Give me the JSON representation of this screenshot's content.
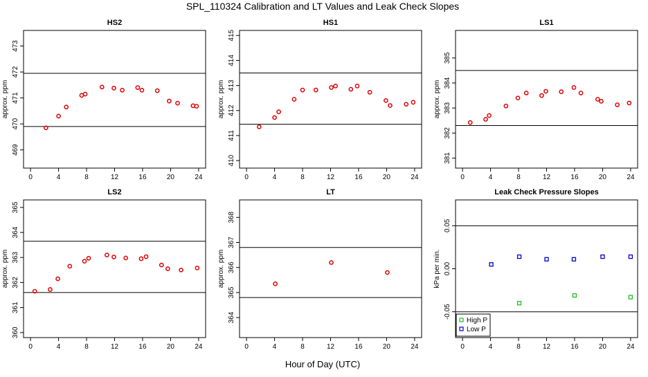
{
  "title": "SPL_110324  Calibration and LT Values and Leak Check Slopes",
  "xlabel": "Hour of Day (UTC)",
  "chart_data": [
    {
      "type": "scatter",
      "title": "HS2",
      "ylabel": "approx. ppm",
      "xlim": [
        -1,
        25
      ],
      "ylim": [
        468.3,
        473.6
      ],
      "xticks": [
        0,
        4,
        8,
        12,
        16,
        20,
        24
      ],
      "yticks": [
        469,
        470,
        471,
        472,
        473
      ],
      "hlines": [
        469.9,
        471.95
      ],
      "series": [
        {
          "color": "#dd0000",
          "marker": "circle",
          "x": [
            2.2,
            4,
            5.1,
            7.3,
            7.8,
            10.2,
            11.9,
            13.1,
            15.3,
            15.9,
            18.1,
            19.8,
            21,
            23.2,
            23.7
          ],
          "y": [
            469.85,
            470.3,
            470.65,
            471.1,
            471.15,
            471.42,
            471.38,
            471.3,
            471.4,
            471.3,
            471.28,
            470.88,
            470.8,
            470.7,
            470.68
          ]
        }
      ]
    },
    {
      "type": "scatter",
      "title": "HS1",
      "ylabel": "approx. ppm",
      "xlim": [
        -1,
        25
      ],
      "ylim": [
        409.7,
        415.2
      ],
      "xticks": [
        0,
        4,
        8,
        12,
        16,
        20,
        24
      ],
      "yticks": [
        410,
        411,
        412,
        413,
        414,
        415
      ],
      "hlines": [
        411.45,
        413.5
      ],
      "series": [
        {
          "color": "#dd0000",
          "marker": "circle",
          "x": [
            1.8,
            4,
            4.6,
            6.8,
            8,
            9.9,
            12.1,
            12.7,
            14.9,
            15.8,
            17.6,
            19.9,
            20.5,
            22.8,
            23.8
          ],
          "y": [
            411.35,
            411.72,
            411.95,
            412.45,
            412.82,
            412.82,
            412.92,
            412.98,
            412.85,
            412.98,
            412.73,
            412.4,
            412.2,
            412.25,
            412.33
          ]
        }
      ]
    },
    {
      "type": "scatter",
      "title": "LS1",
      "ylabel": "approx. ppm",
      "xlim": [
        -1,
        25
      ],
      "ylim": [
        380.6,
        386.1
      ],
      "xticks": [
        0,
        4,
        8,
        12,
        16,
        20,
        24
      ],
      "yticks": [
        381,
        382,
        383,
        384,
        385
      ],
      "hlines": [
        382.3,
        384.5
      ],
      "series": [
        {
          "color": "#dd0000",
          "marker": "circle",
          "x": [
            1.1,
            3.3,
            3.8,
            6.2,
            7.9,
            9.1,
            11.3,
            11.9,
            14.1,
            15.9,
            16.9,
            19.3,
            19.8,
            22.1,
            23.8
          ],
          "y": [
            382.42,
            382.55,
            382.7,
            383.08,
            383.4,
            383.6,
            383.5,
            383.67,
            383.65,
            383.82,
            383.6,
            383.35,
            383.27,
            383.13,
            383.2
          ]
        }
      ]
    },
    {
      "type": "scatter",
      "title": "LS2",
      "ylabel": "approx. ppm",
      "xlim": [
        -1,
        25
      ],
      "ylim": [
        359.8,
        365.3
      ],
      "xticks": [
        0,
        4,
        8,
        12,
        16,
        20,
        24
      ],
      "yticks": [
        360,
        361,
        362,
        363,
        364,
        365
      ],
      "hlines": [
        361.6,
        363.65
      ],
      "series": [
        {
          "color": "#dd0000",
          "marker": "circle",
          "x": [
            0.6,
            2.8,
            3.9,
            5.6,
            7.7,
            8.3,
            10.9,
            11.9,
            13.6,
            15.8,
            16.5,
            18.7,
            19.6,
            21.5,
            23.8
          ],
          "y": [
            361.65,
            361.72,
            362.15,
            362.65,
            362.85,
            362.97,
            363.1,
            363.02,
            362.98,
            362.95,
            363.03,
            362.7,
            362.55,
            362.5,
            362.58
          ]
        }
      ]
    },
    {
      "type": "scatter",
      "title": "LT",
      "ylabel": "approx. ppm",
      "xlim": [
        -1,
        25
      ],
      "ylim": [
        363.2,
        368.7
      ],
      "xticks": [
        0,
        4,
        8,
        12,
        16,
        20,
        24
      ],
      "yticks": [
        364,
        365,
        366,
        367,
        368
      ],
      "hlines": [
        364.8,
        366.8
      ],
      "series": [
        {
          "color": "#dd0000",
          "marker": "circle",
          "x": [
            4.1,
            12.1,
            20.1
          ],
          "y": [
            365.35,
            366.2,
            365.8
          ]
        }
      ]
    },
    {
      "type": "scatter",
      "title": "Leak Check Pressure Slopes",
      "ylabel": "kPa per min.",
      "xlim": [
        -1,
        25
      ],
      "ylim": [
        -0.08,
        0.08
      ],
      "xticks": [
        0,
        4,
        8,
        12,
        16,
        20,
        24
      ],
      "yticks": [
        -0.05,
        0,
        0.05
      ],
      "ytick_labels": [
        "-0.05",
        "0.00",
        "0.05"
      ],
      "hlines": [
        -0.05,
        0.05
      ],
      "series": [
        {
          "name": "High P",
          "color": "#22bb22",
          "marker": "square",
          "x": [
            8.1,
            16,
            24
          ],
          "y": [
            -0.04,
            -0.031,
            -0.033
          ]
        },
        {
          "name": "Low P",
          "color": "#0000cc",
          "marker": "square",
          "x": [
            4.1,
            8.1,
            12,
            15.9,
            20,
            24
          ],
          "y": [
            0.005,
            0.014,
            0.011,
            0.011,
            0.014,
            0.014
          ]
        }
      ],
      "legend": "bottom-left"
    }
  ]
}
